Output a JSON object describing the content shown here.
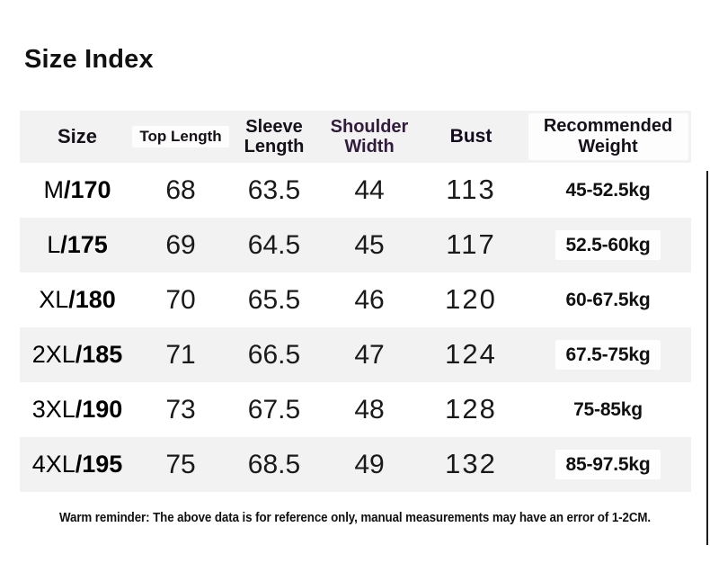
{
  "page": {
    "title": "Size Index",
    "footer": "Warm reminder: The above data is for reference only, manual measurements may have an error of 1-2CM."
  },
  "colors": {
    "row_stripe_bg": "#f2f2f3",
    "header_bg": "#f2f2f3",
    "shoulder_width_header_text": "#321c3c",
    "body_text": "#111111",
    "page_bg": "#ffffff"
  },
  "table": {
    "columns": [
      {
        "key": "size",
        "label": "Size"
      },
      {
        "key": "top_length",
        "label": "Top Length"
      },
      {
        "key": "sleeve_length",
        "label": "Sleeve Length"
      },
      {
        "key": "shoulder_width",
        "label": "Shoulder Width"
      },
      {
        "key": "bust",
        "label": "Bust"
      },
      {
        "key": "weight",
        "label": "Recommended Weight"
      }
    ],
    "rows": [
      {
        "size_prefix": "M",
        "size_suffix": "/170",
        "top_length": "68",
        "sleeve_length": "63.5",
        "shoulder_width": "44",
        "bust": "113",
        "weight": "45-52.5kg"
      },
      {
        "size_prefix": "L ",
        "size_suffix": "/175",
        "top_length": "69",
        "sleeve_length": "64.5",
        "shoulder_width": "45",
        "bust": "117",
        "weight": "52.5-60kg"
      },
      {
        "size_prefix": "XL",
        "size_suffix": "/180",
        "top_length": "70",
        "sleeve_length": "65.5",
        "shoulder_width": "46",
        "bust": "120",
        "weight": "60-67.5kg"
      },
      {
        "size_prefix": "2XL",
        "size_suffix": "/185",
        "top_length": "71",
        "sleeve_length": "66.5",
        "shoulder_width": "47",
        "bust": "124",
        "weight": "67.5-75kg"
      },
      {
        "size_prefix": "3XL",
        "size_suffix": "/190",
        "top_length": "73",
        "sleeve_length": "67.5",
        "shoulder_width": "48",
        "bust": "128",
        "weight": "75-85kg"
      },
      {
        "size_prefix": "4XL",
        "size_suffix": "/195",
        "top_length": "75",
        "sleeve_length": "68.5",
        "shoulder_width": "49",
        "bust": "132",
        "weight": "85-97.5kg"
      }
    ]
  }
}
